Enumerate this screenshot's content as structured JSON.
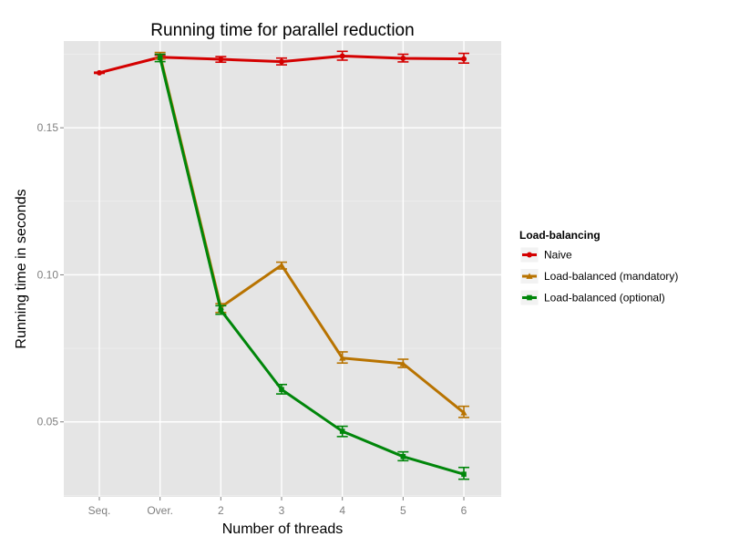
{
  "chart_data": {
    "type": "line",
    "title": "Running time for parallel reduction",
    "xlabel": "Number of threads",
    "ylabel": "Running time in seconds",
    "categories": [
      "Seq.",
      "Over.",
      "2",
      "3",
      "4",
      "5",
      "6"
    ],
    "yticks": [
      0.05,
      0.1,
      0.15
    ],
    "ytick_labels": [
      "0.05",
      "0.10",
      "0.15"
    ],
    "ylim": [
      0.0245,
      0.1795
    ],
    "grid": true,
    "legend_position": "right",
    "legend_title": "Load-balancing",
    "series": [
      {
        "name": "Naive",
        "color": "#d40000",
        "marker": "circle",
        "values": [
          0.1687,
          0.174,
          0.1733,
          0.1725,
          0.1744,
          0.1736,
          0.1734
        ],
        "err_low": [
          0.1685,
          0.1734,
          0.1723,
          0.1714,
          0.173,
          0.1724,
          0.172
        ],
        "err_high": [
          0.1689,
          0.1747,
          0.1742,
          0.1737,
          0.176,
          0.175,
          0.1753
        ]
      },
      {
        "name": "Load-balanced (mandatory)",
        "color": "#b87300",
        "marker": "triangle",
        "values": [
          null,
          0.1746,
          0.089,
          0.1033,
          0.0717,
          0.0698,
          0.0531
        ],
        "err_low": [
          null,
          0.1735,
          0.0872,
          0.102,
          0.07,
          0.0685,
          0.0515
        ],
        "err_high": [
          null,
          0.1756,
          0.0902,
          0.1043,
          0.0738,
          0.0713,
          0.0553
        ]
      },
      {
        "name": "Load-balanced (optional)",
        "color": "#00860a",
        "marker": "square",
        "values": [
          null,
          0.1738,
          0.088,
          0.061,
          0.0468,
          0.0382,
          0.0322
        ],
        "err_low": [
          null,
          0.1725,
          0.0866,
          0.0595,
          0.045,
          0.0368,
          0.0305
        ],
        "err_high": [
          null,
          0.175,
          0.0895,
          0.0627,
          0.0485,
          0.0398,
          0.0345
        ]
      }
    ]
  }
}
